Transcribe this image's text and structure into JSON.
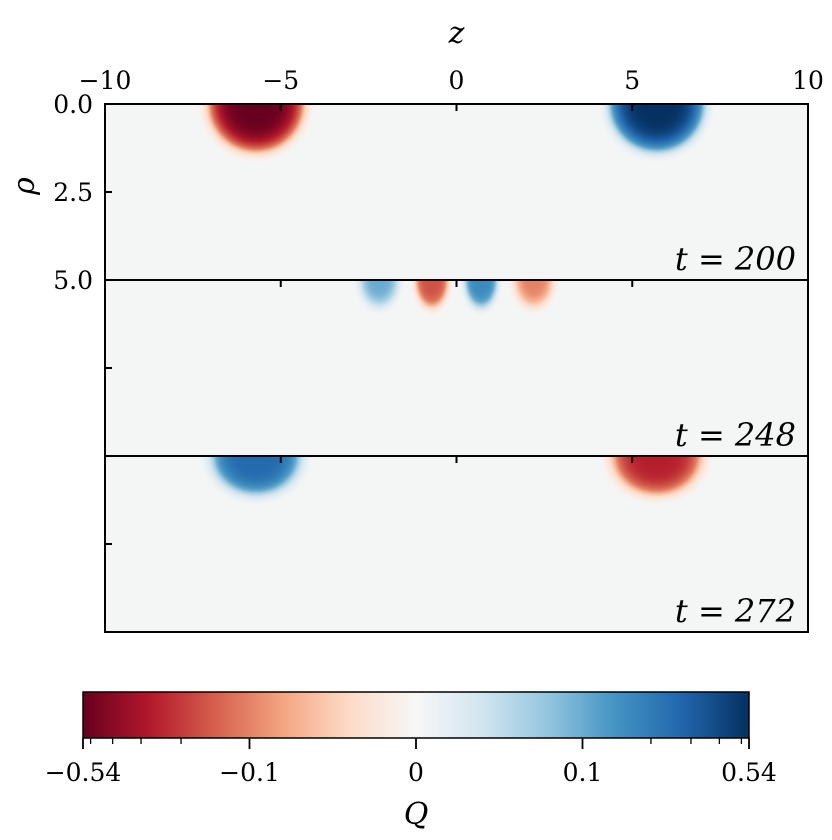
{
  "chart_data": {
    "type": "heatmap",
    "xlabel": "z",
    "ylabel": "ρ",
    "xlim": [
      -10,
      10
    ],
    "ylim": [
      0.0,
      5.0
    ],
    "x_ticks": [
      -10,
      -5,
      0,
      5,
      10
    ],
    "x_tick_labels": [
      "−10",
      "−5",
      "0",
      "5",
      "10"
    ],
    "y_ticks": [
      0.0,
      2.5,
      5.0
    ],
    "y_tick_labels": [
      "0.0",
      "2.5",
      "5.0"
    ],
    "panels": [
      {
        "label": "t = 200",
        "t": 200,
        "blobs": [
          {
            "z": -5.7,
            "rho": 0.0,
            "amplitude": -0.54,
            "width_z": 1.15,
            "width_rho": 1.15
          },
          {
            "z": 5.7,
            "rho": 0.0,
            "amplitude": 0.54,
            "width_z": 1.15,
            "width_rho": 1.15
          }
        ]
      },
      {
        "label": "t = 248",
        "t": 248,
        "blobs": [
          {
            "z": -2.2,
            "rho": 0.0,
            "amplitude": 0.1,
            "width_z": 0.55,
            "width_rho": 0.75
          },
          {
            "z": -0.7,
            "rho": 0.0,
            "amplitude": -0.16,
            "width_z": 0.45,
            "width_rho": 0.75
          },
          {
            "z": 0.7,
            "rho": 0.0,
            "amplitude": 0.16,
            "width_z": 0.45,
            "width_rho": 0.75
          },
          {
            "z": 2.2,
            "rho": 0.0,
            "amplitude": -0.1,
            "width_z": 0.55,
            "width_rho": 0.75
          }
        ]
      },
      {
        "label": "t = 272",
        "t": 272,
        "blobs": [
          {
            "z": -5.7,
            "rho": 0.0,
            "amplitude": 0.26,
            "width_z": 1.15,
            "width_rho": 1.0
          },
          {
            "z": 5.7,
            "rho": 0.0,
            "amplitude": -0.26,
            "width_z": 1.15,
            "width_rho": 1.0
          }
        ]
      }
    ],
    "colorbar": {
      "label": "Q",
      "colormap": "RdBu",
      "range": [
        -0.54,
        0.54
      ],
      "ticks": [
        -0.54,
        -0.1,
        0,
        0.1,
        0.54
      ],
      "tick_labels": [
        "−0.54",
        "−0.1",
        "0",
        "0.1",
        "0.54"
      ],
      "colors": [
        "#67001f",
        "#b2182b",
        "#d6604d",
        "#f4a582",
        "#fddbc7",
        "#f7f7f7",
        "#d1e5f0",
        "#92c5de",
        "#4393c3",
        "#2166ac",
        "#053061"
      ]
    },
    "background_color": "#f4f5f5"
  }
}
